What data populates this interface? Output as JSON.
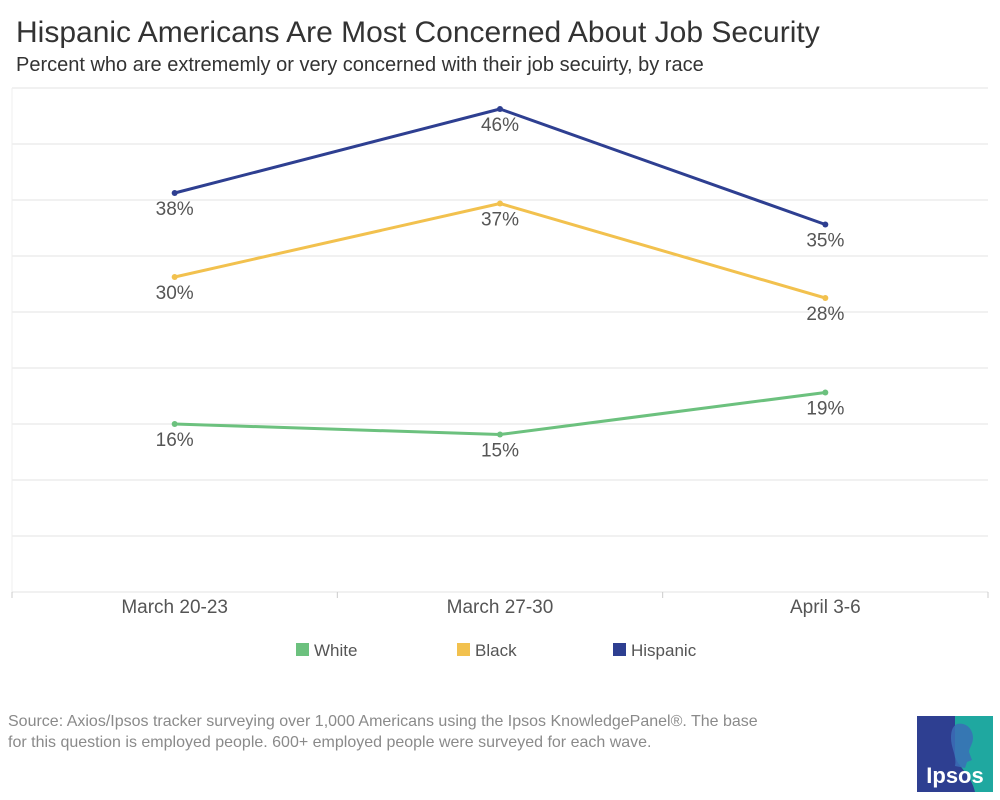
{
  "title": "Hispanic Americans Are Most Concerned About Job Security",
  "subtitle": "Percent who are extrememly or very concerned with their job secuirty, by race",
  "source_text": "Source: Axios/Ipsos tracker surveying over 1,000  Americans using the Ipsos KnowledgePanel®. The base for this question is employed people. 600+ employed people were surveyed for each wave.",
  "logo_text": "Ipsos",
  "colors": {
    "White": "#6cc17e",
    "Black": "#f2c14e",
    "Hispanic": "#2e3f91",
    "grid": "#e3e3e3",
    "label": "#555555",
    "logo_blue": "#2e3f91",
    "logo_teal": "#1fa8a0"
  },
  "chart_data": {
    "type": "line",
    "categories": [
      "March 20-23",
      "March 27-30",
      "April 3-6"
    ],
    "series": [
      {
        "name": "White",
        "values": [
          16,
          15,
          19
        ],
        "labels": [
          "16%",
          "15%",
          "19%"
        ]
      },
      {
        "name": "Black",
        "values": [
          30,
          37,
          28
        ],
        "labels": [
          "30%",
          "37%",
          "28%"
        ]
      },
      {
        "name": "Hispanic",
        "values": [
          38,
          46,
          35
        ],
        "labels": [
          "38%",
          "46%",
          "35%"
        ]
      }
    ],
    "ylim": [
      0,
      48
    ],
    "grid": true,
    "legend_position": "bottom"
  }
}
